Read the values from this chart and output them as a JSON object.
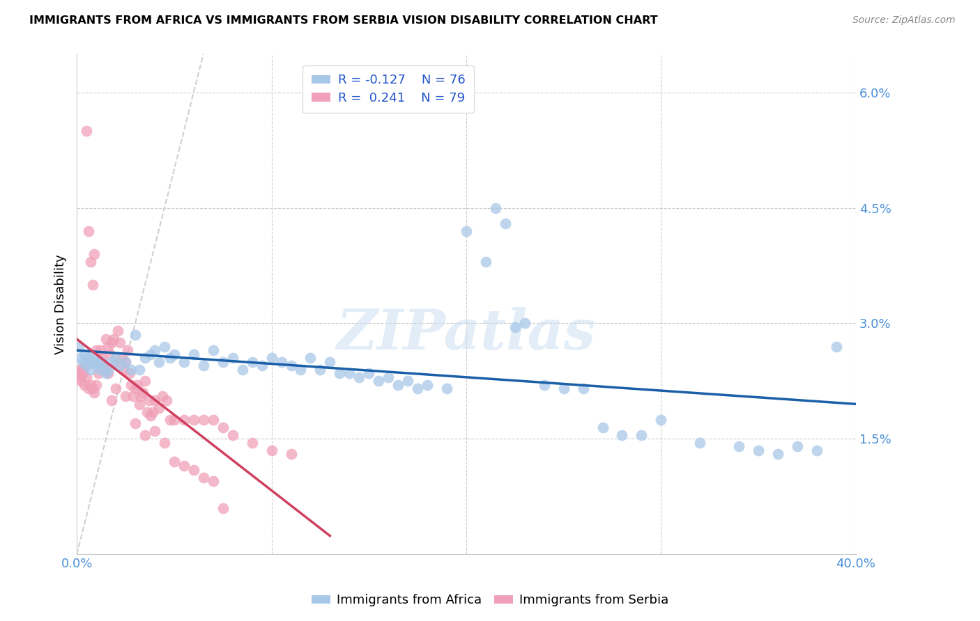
{
  "title": "IMMIGRANTS FROM AFRICA VS IMMIGRANTS FROM SERBIA VISION DISABILITY CORRELATION CHART",
  "source": "Source: ZipAtlas.com",
  "ylabel": "Vision Disability",
  "xlim": [
    0.0,
    0.4
  ],
  "ylim": [
    0.0,
    0.065
  ],
  "yticks": [
    0.0,
    0.015,
    0.03,
    0.045,
    0.06
  ],
  "ytick_labels": [
    "",
    "1.5%",
    "3.0%",
    "4.5%",
    "6.0%"
  ],
  "xtick_vals": [
    0.0,
    0.1,
    0.2,
    0.3,
    0.4
  ],
  "xtick_labels": [
    "0.0%",
    "",
    "",
    "",
    "40.0%"
  ],
  "legend_r_africa": "R = -0.127",
  "legend_n_africa": "N = 76",
  "legend_r_serbia": "R =  0.241",
  "legend_n_serbia": "N = 79",
  "color_africa": "#a8c8e8",
  "color_serbia": "#f0a0b8",
  "line_color_africa": "#1a5fa8",
  "line_color_serbia": "#d04060",
  "diagonal_color": "#d0d0d0",
  "watermark": "ZIPatlas",
  "africa_x": [
    0.001,
    0.002,
    0.003,
    0.004,
    0.005,
    0.006,
    0.007,
    0.008,
    0.009,
    0.01,
    0.011,
    0.012,
    0.013,
    0.015,
    0.016,
    0.018,
    0.02,
    0.022,
    0.025,
    0.028,
    0.03,
    0.032,
    0.035,
    0.038,
    0.04,
    0.042,
    0.045,
    0.048,
    0.05,
    0.055,
    0.06,
    0.065,
    0.07,
    0.075,
    0.08,
    0.085,
    0.09,
    0.095,
    0.1,
    0.105,
    0.11,
    0.115,
    0.12,
    0.125,
    0.13,
    0.135,
    0.14,
    0.145,
    0.15,
    0.155,
    0.16,
    0.165,
    0.17,
    0.175,
    0.18,
    0.19,
    0.2,
    0.21,
    0.215,
    0.22,
    0.225,
    0.23,
    0.24,
    0.25,
    0.26,
    0.27,
    0.28,
    0.29,
    0.3,
    0.32,
    0.34,
    0.35,
    0.36,
    0.37,
    0.38,
    0.39
  ],
  "africa_y": [
    0.027,
    0.0255,
    0.025,
    0.026,
    0.0245,
    0.0255,
    0.024,
    0.0255,
    0.0248,
    0.025,
    0.0245,
    0.024,
    0.025,
    0.0235,
    0.024,
    0.025,
    0.0255,
    0.0245,
    0.025,
    0.024,
    0.0285,
    0.024,
    0.0255,
    0.026,
    0.0265,
    0.025,
    0.027,
    0.0255,
    0.026,
    0.025,
    0.026,
    0.0245,
    0.0265,
    0.025,
    0.0255,
    0.024,
    0.025,
    0.0245,
    0.0255,
    0.025,
    0.0245,
    0.024,
    0.0255,
    0.024,
    0.025,
    0.0235,
    0.0235,
    0.023,
    0.0235,
    0.0225,
    0.023,
    0.022,
    0.0225,
    0.0215,
    0.022,
    0.0215,
    0.042,
    0.038,
    0.045,
    0.043,
    0.0295,
    0.03,
    0.022,
    0.0215,
    0.0215,
    0.0165,
    0.0155,
    0.0155,
    0.0175,
    0.0145,
    0.014,
    0.0135,
    0.013,
    0.014,
    0.0135,
    0.027
  ],
  "serbia_x": [
    0.001,
    0.001,
    0.002,
    0.002,
    0.003,
    0.003,
    0.004,
    0.004,
    0.005,
    0.005,
    0.006,
    0.006,
    0.007,
    0.007,
    0.008,
    0.008,
    0.009,
    0.009,
    0.01,
    0.01,
    0.011,
    0.012,
    0.013,
    0.014,
    0.015,
    0.016,
    0.017,
    0.018,
    0.019,
    0.02,
    0.021,
    0.022,
    0.023,
    0.024,
    0.025,
    0.026,
    0.027,
    0.028,
    0.029,
    0.03,
    0.031,
    0.032,
    0.033,
    0.034,
    0.035,
    0.036,
    0.037,
    0.038,
    0.039,
    0.04,
    0.042,
    0.044,
    0.046,
    0.048,
    0.05,
    0.055,
    0.06,
    0.065,
    0.07,
    0.075,
    0.08,
    0.09,
    0.1,
    0.11,
    0.014,
    0.016,
    0.018,
    0.02,
    0.025,
    0.03,
    0.035,
    0.04,
    0.045,
    0.05,
    0.055,
    0.06,
    0.065,
    0.07,
    0.075
  ],
  "serbia_y": [
    0.024,
    0.023,
    0.0235,
    0.0225,
    0.024,
    0.0235,
    0.0245,
    0.022,
    0.055,
    0.023,
    0.042,
    0.0215,
    0.038,
    0.022,
    0.035,
    0.0215,
    0.039,
    0.021,
    0.0265,
    0.022,
    0.0235,
    0.0265,
    0.0255,
    0.0245,
    0.028,
    0.027,
    0.026,
    0.0275,
    0.028,
    0.025,
    0.029,
    0.0275,
    0.0255,
    0.024,
    0.025,
    0.0265,
    0.0235,
    0.022,
    0.0205,
    0.0215,
    0.022,
    0.0195,
    0.0205,
    0.021,
    0.0225,
    0.0185,
    0.02,
    0.018,
    0.0185,
    0.02,
    0.019,
    0.0205,
    0.02,
    0.0175,
    0.0175,
    0.0175,
    0.0175,
    0.0175,
    0.0175,
    0.0165,
    0.0155,
    0.0145,
    0.0135,
    0.013,
    0.0245,
    0.0235,
    0.02,
    0.0215,
    0.0205,
    0.017,
    0.0155,
    0.016,
    0.0145,
    0.012,
    0.0115,
    0.011,
    0.01,
    0.0095,
    0.006
  ]
}
